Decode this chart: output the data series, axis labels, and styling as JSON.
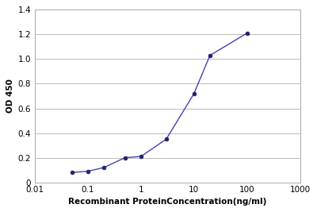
{
  "x_values": [
    0.05,
    0.1,
    0.2,
    0.5,
    1,
    3,
    10,
    20,
    100
  ],
  "y_values": [
    0.08,
    0.09,
    0.12,
    0.2,
    0.21,
    0.35,
    0.72,
    1.03,
    1.21
  ],
  "xlabel": "Recombinant ProteinConcentration(ng/ml)",
  "ylabel": "OD 450",
  "xlim": [
    0.01,
    1000
  ],
  "ylim": [
    0,
    1.4
  ],
  "yticks": [
    0,
    0.2,
    0.4,
    0.6,
    0.8,
    1.0,
    1.2,
    1.4
  ],
  "xtick_vals": [
    0.01,
    0.1,
    1,
    10,
    100,
    1000
  ],
  "xtick_labels": [
    "0.01",
    "0.1",
    "1",
    "10",
    "100",
    "1000"
  ],
  "line_color": "#4444aa",
  "marker_color": "#222266",
  "bg_color": "#ffffff",
  "plot_bg_color": "#ffffff",
  "grid_color": "#bbbbbb",
  "label_fontsize": 7.5,
  "tick_fontsize": 7.5
}
